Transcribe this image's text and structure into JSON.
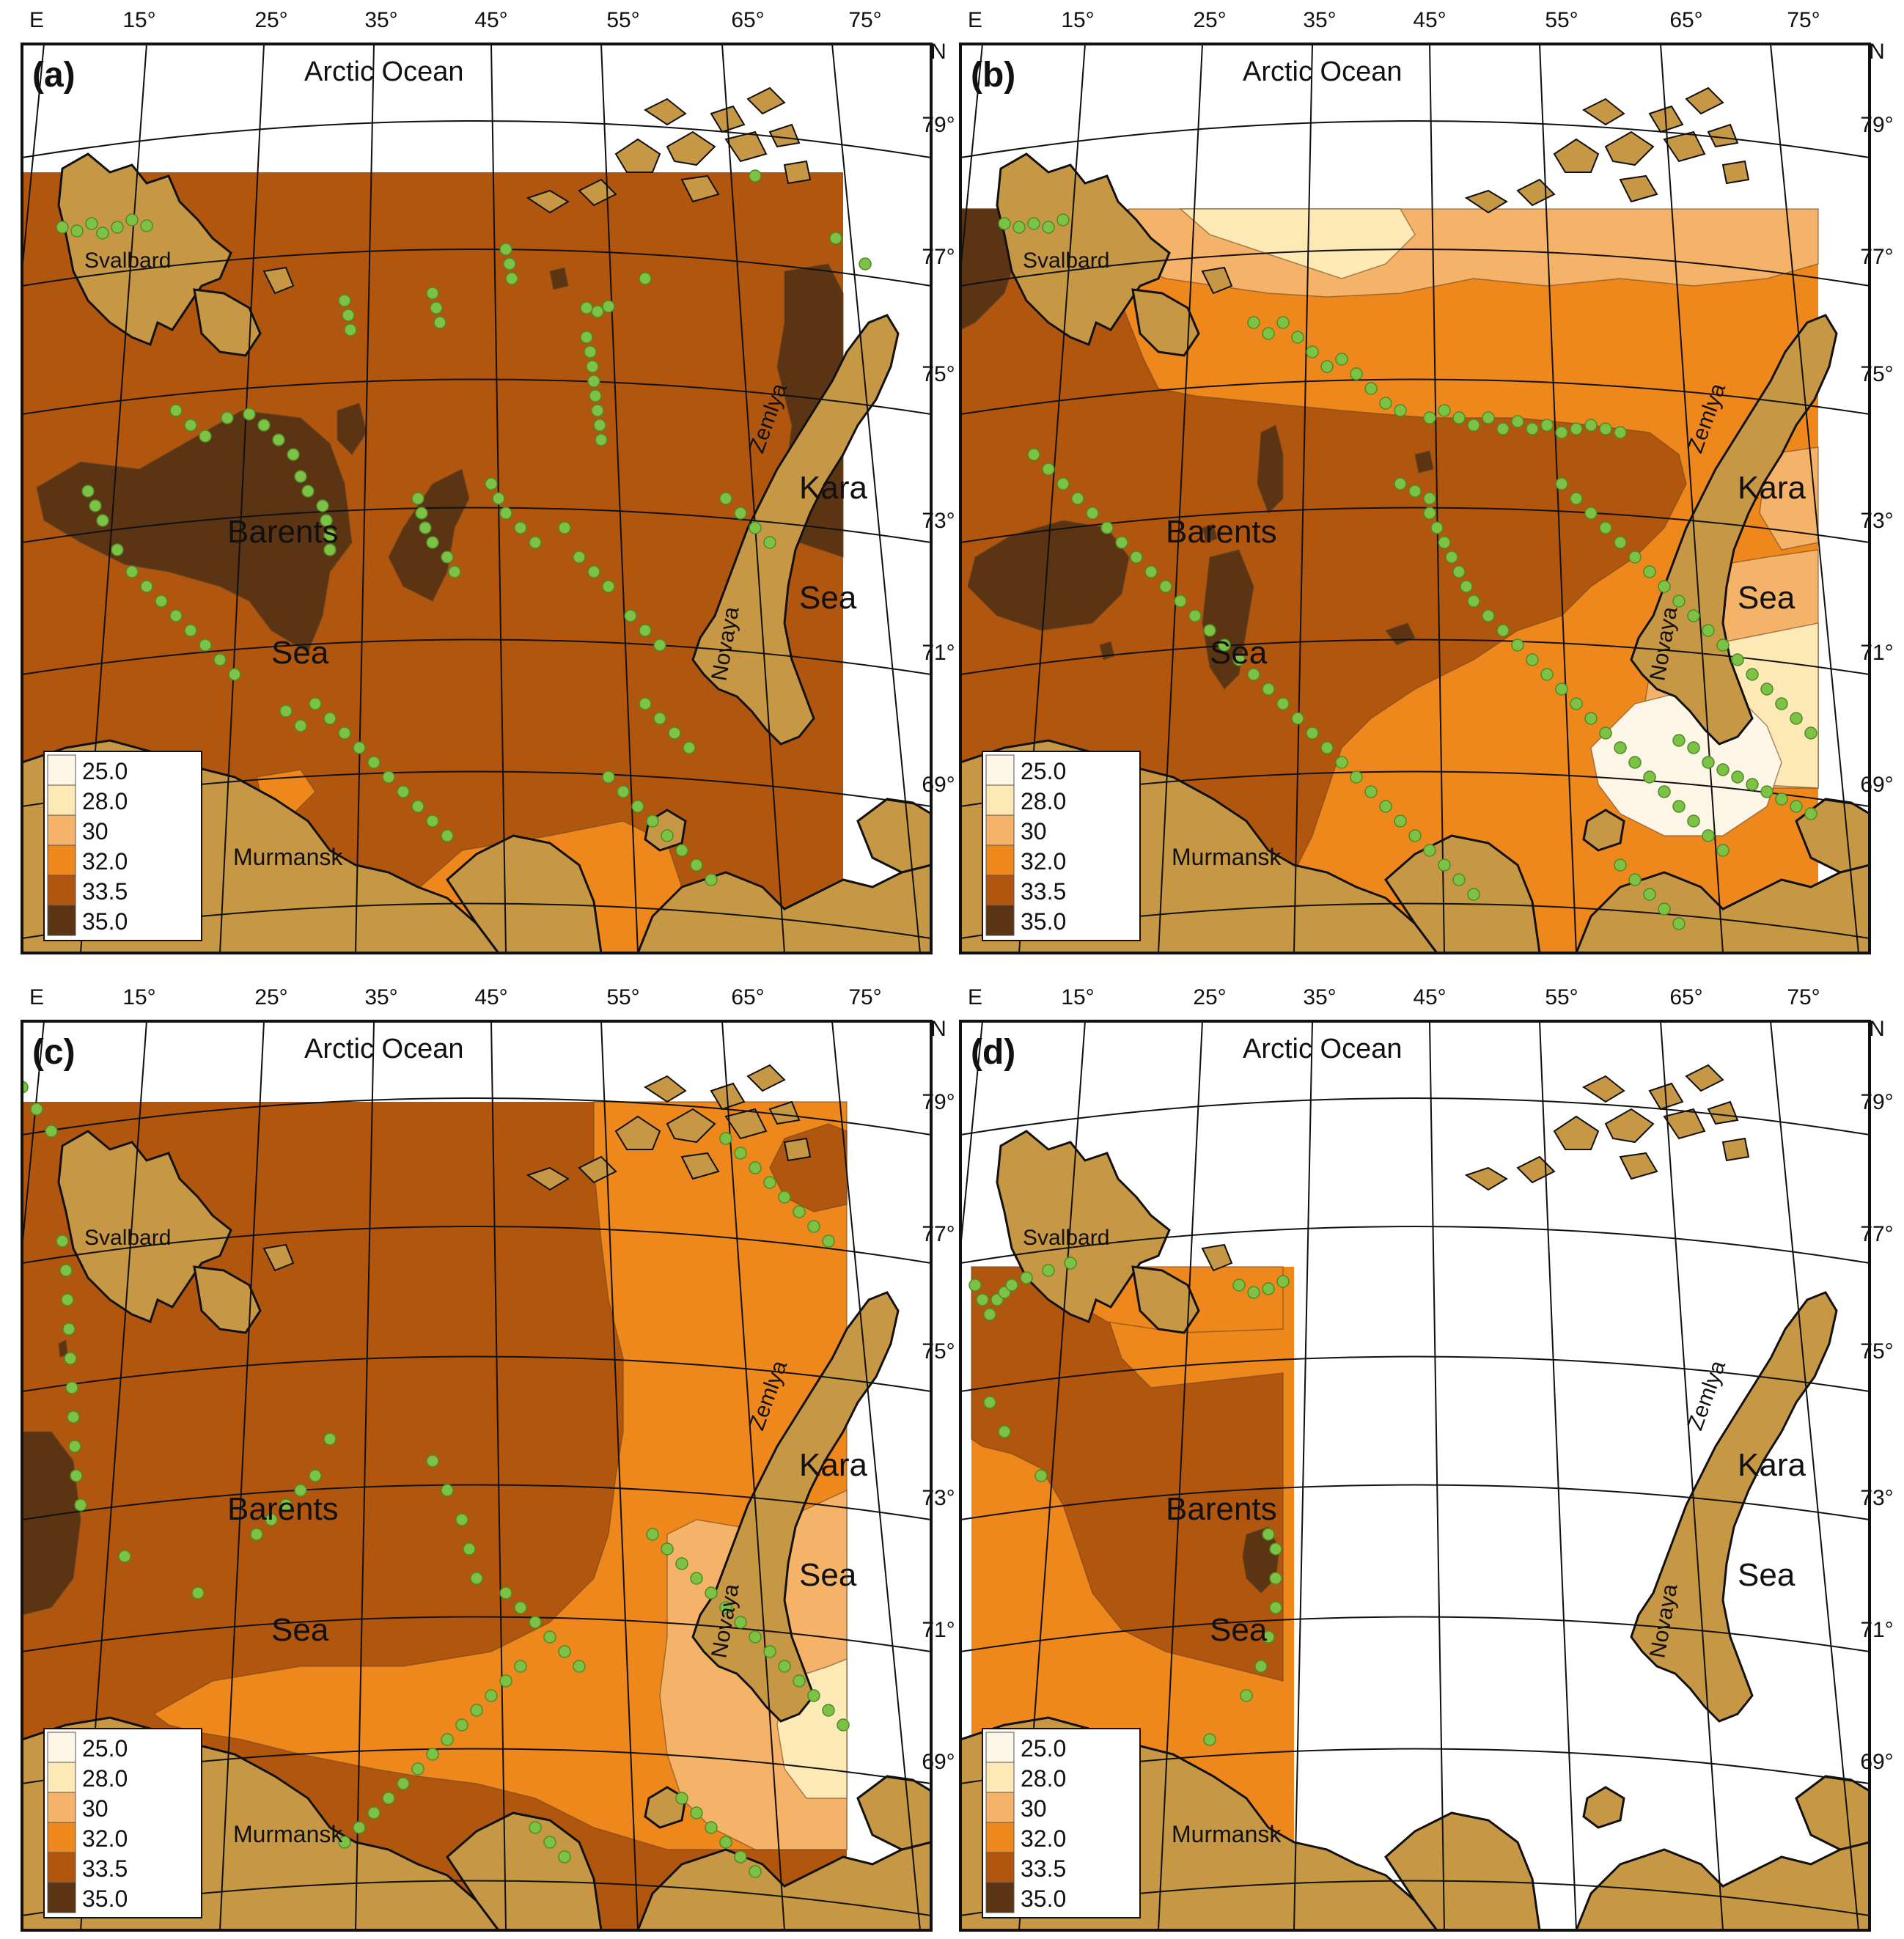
{
  "lon_labels": [
    "E",
    "15°",
    "25°",
    "35°",
    "45°",
    "55°",
    "65°",
    "75°"
  ],
  "lat_labels": [
    "79°",
    "77°",
    "75°",
    "73°",
    "71°",
    "69°"
  ],
  "north_label": "N",
  "ocean_label": "Arctic Ocean",
  "city_label": "Murmansk",
  "island_svalbard": "Svalbard",
  "island_novaya": "Novaya",
  "island_zemlya": "Zemlya",
  "sea_barents_1": "Barents",
  "sea_barents_2": "Sea",
  "sea_kara_1": "Kara",
  "sea_kara_2": "Sea",
  "legend": [
    {
      "value": "25.0",
      "color": "#fdf6e6"
    },
    {
      "value": "28.0",
      "color": "#fde9b6"
    },
    {
      "value": "30",
      "color": "#f5b36a"
    },
    {
      "value": "32.0",
      "color": "#ee871c"
    },
    {
      "value": "33.5",
      "color": "#b1560f"
    },
    {
      "value": "35.0",
      "color": "#5b3414"
    }
  ],
  "colors": {
    "land": "#c69744",
    "water": "#ffffff",
    "station": "#7cc244"
  },
  "panels": [
    {
      "label": "(a)"
    },
    {
      "label": "(b)"
    },
    {
      "label": "(c)"
    },
    {
      "label": "(d)"
    }
  ]
}
